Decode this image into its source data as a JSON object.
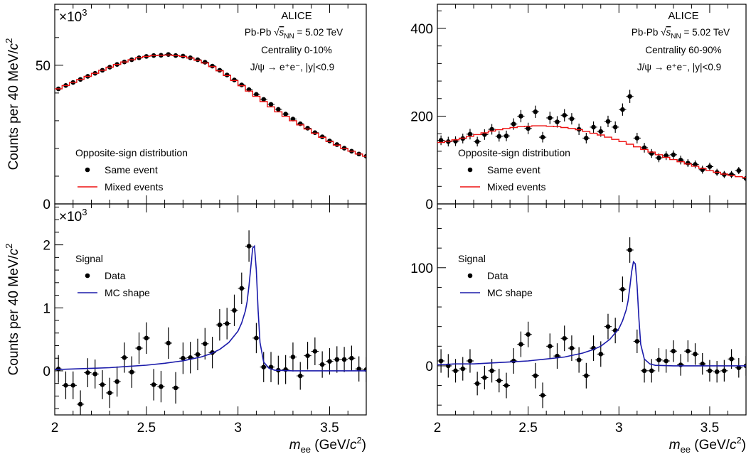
{
  "figure": {
    "experiment": "ALICE",
    "system": "Pb-Pb",
    "energy_symbol": "s",
    "energy_subscript": "NN",
    "energy_value": "= 5.02 TeV",
    "decay": "J/ψ → e⁺e⁻, |y|<0.9"
  },
  "chart_data": [
    {
      "type": "scatter",
      "panel": "top-left",
      "title": "",
      "annotations": [
        "ALICE",
        "Pb-Pb √sNN = 5.02 TeV",
        "Centrality 0-10%",
        "J/ψ → e⁺e⁻, |y|<0.9"
      ],
      "centrality": "Centrality 0-10%",
      "multiplier_base": "×10",
      "multiplier_exp": "3",
      "xlabel": "",
      "ylabel": "Counts per 40 MeV/c²",
      "ylabel_text": "Counts per 40 MeV/",
      "ylabel_c": "c",
      "ylabel_exp": "2",
      "xlim": [
        2,
        3.7
      ],
      "ylim": [
        0,
        72
      ],
      "yticks": [
        0,
        50
      ],
      "ytick_labels": [
        "0",
        "50"
      ],
      "xticks": [
        2,
        2.5,
        3,
        3.5
      ],
      "xtick_labels": [],
      "legend_title": "Opposite-sign distribution",
      "legend": [
        "Same event",
        "Mixed events"
      ],
      "legend_placement": "bottom-left",
      "series": [
        {
          "name": "Same event",
          "kind": "points",
          "color": "#000000",
          "x": [
            2.02,
            2.06,
            2.1,
            2.14,
            2.18,
            2.22,
            2.26,
            2.3,
            2.34,
            2.38,
            2.42,
            2.46,
            2.5,
            2.54,
            2.58,
            2.62,
            2.66,
            2.7,
            2.74,
            2.78,
            2.82,
            2.86,
            2.9,
            2.94,
            2.98,
            3.02,
            3.06,
            3.1,
            3.14,
            3.18,
            3.22,
            3.26,
            3.3,
            3.34,
            3.38,
            3.42,
            3.46,
            3.5,
            3.54,
            3.58,
            3.62,
            3.66,
            3.7
          ],
          "y": [
            41.5,
            42.7,
            43.8,
            44.9,
            46.0,
            47.1,
            48.2,
            49.3,
            50.3,
            51.2,
            52.0,
            52.7,
            53.2,
            53.5,
            53.6,
            53.9,
            53.5,
            53.3,
            52.7,
            52.0,
            51.1,
            49.7,
            48.2,
            46.5,
            44.7,
            42.9,
            41.2,
            39.5,
            37.7,
            35.9,
            34.1,
            32.4,
            30.6,
            28.9,
            27.3,
            25.7,
            24.2,
            22.7,
            21.4,
            20.1,
            19.0,
            18.0,
            17.2
          ],
          "yerr": [
            0.3,
            0.3,
            0.3,
            0.3,
            0.3,
            0.3,
            0.3,
            0.3,
            0.3,
            0.3,
            0.3,
            0.3,
            0.3,
            0.3,
            0.3,
            0.3,
            0.3,
            0.3,
            0.3,
            0.3,
            0.3,
            0.3,
            0.3,
            0.3,
            0.3,
            0.3,
            0.3,
            0.3,
            0.3,
            0.3,
            0.3,
            0.3,
            0.3,
            0.3,
            0.3,
            0.3,
            0.3,
            0.3,
            0.3,
            0.3,
            0.3,
            0.3,
            0.3
          ]
        },
        {
          "name": "Mixed events",
          "kind": "step",
          "color": "#ee1111",
          "x": [
            2.02,
            2.06,
            2.1,
            2.14,
            2.18,
            2.22,
            2.26,
            2.3,
            2.34,
            2.38,
            2.42,
            2.46,
            2.5,
            2.54,
            2.58,
            2.62,
            2.66,
            2.7,
            2.74,
            2.78,
            2.82,
            2.86,
            2.9,
            2.94,
            2.98,
            3.02,
            3.06,
            3.1,
            3.14,
            3.18,
            3.22,
            3.26,
            3.3,
            3.34,
            3.38,
            3.42,
            3.46,
            3.5,
            3.54,
            3.58,
            3.62,
            3.66,
            3.7
          ],
          "y": [
            41.5,
            42.7,
            43.8,
            44.9,
            46.0,
            47.1,
            48.2,
            49.3,
            50.3,
            51.2,
            52.0,
            52.7,
            53.2,
            53.5,
            53.6,
            53.7,
            53.5,
            53.2,
            52.6,
            51.8,
            50.8,
            49.5,
            48.0,
            46.3,
            44.5,
            42.6,
            40.7,
            38.8,
            36.9,
            35.0,
            33.2,
            31.6,
            30.0,
            28.5,
            27.0,
            25.5,
            24.0,
            22.5,
            21.2,
            20.0,
            19.0,
            18.0,
            17.2
          ]
        }
      ]
    },
    {
      "type": "scatter",
      "panel": "top-right",
      "title": "",
      "annotations": [
        "ALICE",
        "Pb-Pb √sNN = 5.02 TeV",
        "Centrality 60-90%",
        "J/ψ → e⁺e⁻, |y|<0.9"
      ],
      "centrality": "Centrality 60-90%",
      "xlabel": "",
      "ylabel": "",
      "xlim": [
        2,
        3.7
      ],
      "ylim": [
        0,
        455
      ],
      "yticks": [
        0,
        200,
        400
      ],
      "ytick_labels": [
        "0",
        "200",
        "400"
      ],
      "xticks": [
        2,
        2.5,
        3,
        3.5
      ],
      "xtick_labels": [],
      "legend_title": "Opposite-sign distribution",
      "legend": [
        "Same event",
        "Mixed events"
      ],
      "legend_placement": "bottom-left",
      "series": [
        {
          "name": "Same event",
          "kind": "points",
          "color": "#000000",
          "x": [
            2.02,
            2.06,
            2.1,
            2.14,
            2.18,
            2.22,
            2.26,
            2.3,
            2.34,
            2.38,
            2.42,
            2.46,
            2.5,
            2.54,
            2.58,
            2.62,
            2.66,
            2.7,
            2.74,
            2.78,
            2.82,
            2.86,
            2.9,
            2.94,
            2.98,
            3.02,
            3.06,
            3.1,
            3.14,
            3.18,
            3.22,
            3.26,
            3.3,
            3.34,
            3.38,
            3.42,
            3.46,
            3.5,
            3.54,
            3.58,
            3.62,
            3.66,
            3.7
          ],
          "y": [
            145,
            142,
            143,
            149,
            159,
            142,
            158,
            170,
            154,
            155,
            182,
            200,
            172,
            210,
            152,
            196,
            187,
            202,
            194,
            170,
            150,
            175,
            165,
            188,
            175,
            215,
            245,
            150,
            128,
            115,
            105,
            110,
            112,
            100,
            93,
            90,
            78,
            85,
            72,
            67,
            67,
            76,
            58
          ],
          "yerr": [
            11,
            11,
            11,
            11,
            12,
            11,
            12,
            12,
            12,
            12,
            13,
            14,
            13,
            14,
            12,
            14,
            13,
            14,
            13,
            13,
            12,
            13,
            12,
            13,
            13,
            14,
            15,
            12,
            11,
            10,
            10,
            10,
            10,
            10,
            9,
            9,
            9,
            9,
            8,
            8,
            8,
            8,
            7
          ]
        },
        {
          "name": "Mixed events",
          "kind": "step",
          "color": "#ee1111",
          "x": [
            2.02,
            2.06,
            2.1,
            2.14,
            2.18,
            2.22,
            2.26,
            2.3,
            2.34,
            2.38,
            2.42,
            2.46,
            2.5,
            2.54,
            2.58,
            2.62,
            2.66,
            2.7,
            2.74,
            2.78,
            2.82,
            2.86,
            2.9,
            2.94,
            2.98,
            3.02,
            3.06,
            3.1,
            3.14,
            3.18,
            3.22,
            3.26,
            3.3,
            3.34,
            3.38,
            3.42,
            3.46,
            3.5,
            3.54,
            3.58,
            3.62,
            3.66,
            3.7
          ],
          "y": [
            140,
            143,
            146,
            150,
            154,
            158,
            162,
            166,
            169,
            172,
            174,
            176,
            177,
            178,
            178,
            177,
            176,
            174,
            172,
            169,
            165,
            161,
            157,
            152,
            147,
            142,
            136,
            130,
            124,
            118,
            112,
            106,
            101,
            96,
            91,
            86,
            81,
            76,
            72,
            68,
            65,
            62,
            60
          ]
        }
      ]
    },
    {
      "type": "scatter",
      "panel": "bottom-left",
      "title": "",
      "multiplier_base": "×10",
      "multiplier_exp": "3",
      "xlabel": "m_ee (GeV/c²)",
      "xlabel_m": "m",
      "xlabel_sub": "ee",
      "xlabel_rest": " (GeV/",
      "xlabel_c": "c",
      "xlabel_exp": "2",
      "xlabel_close": ")",
      "ylabel": "Counts per 40 MeV/c²",
      "ylabel_text": "Counts per 40 MeV/",
      "ylabel_c": "c",
      "ylabel_exp": "2",
      "xlim": [
        2,
        3.7
      ],
      "ylim": [
        -0.7,
        2.65
      ],
      "yticks": [
        0,
        1,
        2
      ],
      "ytick_labels": [
        "0",
        "1",
        "2"
      ],
      "xticks": [
        2,
        2.5,
        3,
        3.5
      ],
      "xtick_labels": [
        "2",
        "2.5",
        "3",
        "3.5"
      ],
      "legend_title": "Signal",
      "legend": [
        "Data",
        "MC shape"
      ],
      "legend_placement": "top-left",
      "series": [
        {
          "name": "Data",
          "kind": "points",
          "color": "#000000",
          "x": [
            2.02,
            2.06,
            2.1,
            2.14,
            2.18,
            2.22,
            2.26,
            2.3,
            2.34,
            2.38,
            2.42,
            2.46,
            2.5,
            2.54,
            2.58,
            2.62,
            2.66,
            2.7,
            2.74,
            2.78,
            2.82,
            2.86,
            2.9,
            2.94,
            2.98,
            3.02,
            3.06,
            3.1,
            3.14,
            3.18,
            3.22,
            3.26,
            3.3,
            3.34,
            3.38,
            3.42,
            3.46,
            3.5,
            3.54,
            3.58,
            3.62,
            3.66,
            3.7
          ],
          "y": [
            0.03,
            -0.23,
            -0.23,
            -0.53,
            -0.03,
            -0.05,
            -0.22,
            -0.35,
            -0.17,
            0.21,
            -0.02,
            0.36,
            0.52,
            -0.22,
            -0.25,
            0.44,
            -0.27,
            0.2,
            0.21,
            0.26,
            0.43,
            0.29,
            0.73,
            0.75,
            0.96,
            1.31,
            1.98,
            0.52,
            0.06,
            0.06,
            0.01,
            0.02,
            0.22,
            -0.08,
            0.24,
            0.31,
            0.1,
            0.15,
            0.18,
            0.18,
            0.2,
            0.03,
            0.02
          ],
          "yerr": [
            0.22,
            0.22,
            0.22,
            0.22,
            0.23,
            0.23,
            0.23,
            0.24,
            0.24,
            0.24,
            0.25,
            0.25,
            0.25,
            0.25,
            0.25,
            0.25,
            0.25,
            0.25,
            0.25,
            0.25,
            0.25,
            0.25,
            0.25,
            0.25,
            0.25,
            0.25,
            0.25,
            0.24,
            0.24,
            0.24,
            0.23,
            0.23,
            0.23,
            0.22,
            0.22,
            0.22,
            0.21,
            0.21,
            0.21,
            0.2,
            0.2,
            0.2,
            0.2
          ]
        },
        {
          "name": "MC shape",
          "kind": "line",
          "color": "#1a1aaa",
          "x": [
            2.0,
            2.1,
            2.2,
            2.3,
            2.4,
            2.5,
            2.6,
            2.7,
            2.8,
            2.85,
            2.9,
            2.95,
            3.0,
            3.02,
            3.04,
            3.05,
            3.06,
            3.07,
            3.08,
            3.09,
            3.1,
            3.11,
            3.12,
            3.14,
            3.17,
            3.2,
            3.3,
            3.4,
            3.5,
            3.6,
            3.7
          ],
          "y": [
            0.02,
            0.03,
            0.04,
            0.05,
            0.07,
            0.09,
            0.12,
            0.16,
            0.22,
            0.27,
            0.34,
            0.45,
            0.63,
            0.76,
            0.95,
            1.1,
            1.35,
            1.65,
            1.95,
            1.98,
            1.6,
            0.95,
            0.45,
            0.14,
            0.04,
            0.01,
            0.0,
            0.0,
            0.0,
            0.0,
            0.0
          ]
        }
      ]
    },
    {
      "type": "scatter",
      "panel": "bottom-right",
      "title": "",
      "xlabel": "m_ee (GeV/c²)",
      "xlabel_m": "m",
      "xlabel_sub": "ee",
      "xlabel_rest": " (GeV/",
      "xlabel_c": "c",
      "xlabel_exp": "2",
      "xlabel_close": ")",
      "ylabel": "",
      "xlim": [
        2,
        3.7
      ],
      "ylim": [
        -50,
        165
      ],
      "yticks": [
        0,
        100
      ],
      "ytick_labels": [
        "0",
        "100"
      ],
      "xticks": [
        2,
        2.5,
        3,
        3.5
      ],
      "xtick_labels": [
        "2",
        "2.5",
        "3",
        "3.5"
      ],
      "legend_title": "Signal",
      "legend": [
        "Data",
        "MC shape"
      ],
      "legend_placement": "top-left",
      "series": [
        {
          "name": "Data",
          "kind": "points",
          "color": "#000000",
          "x": [
            2.02,
            2.06,
            2.1,
            2.14,
            2.18,
            2.22,
            2.26,
            2.3,
            2.34,
            2.38,
            2.42,
            2.46,
            2.5,
            2.54,
            2.58,
            2.62,
            2.66,
            2.7,
            2.74,
            2.78,
            2.82,
            2.86,
            2.9,
            2.94,
            2.98,
            3.02,
            3.06,
            3.1,
            3.14,
            3.18,
            3.22,
            3.26,
            3.3,
            3.34,
            3.38,
            3.42,
            3.46,
            3.5,
            3.54,
            3.58,
            3.62,
            3.66,
            3.7
          ],
          "y": [
            5,
            0,
            -5,
            -3,
            5,
            -18,
            -12,
            -5,
            -15,
            -20,
            5,
            22,
            32,
            -10,
            -30,
            20,
            10,
            28,
            18,
            6,
            -10,
            18,
            12,
            40,
            36,
            78,
            118,
            25,
            -5,
            -5,
            6,
            5,
            15,
            1,
            15,
            12,
            2,
            -5,
            -6,
            -5,
            7,
            -2,
            0
          ],
          "yerr": [
            12,
            12,
            12,
            12,
            12,
            12,
            12,
            12,
            12,
            13,
            13,
            13,
            13,
            13,
            13,
            13,
            13,
            13,
            13,
            13,
            13,
            13,
            13,
            13,
            13,
            13,
            13,
            12,
            12,
            12,
            12,
            12,
            11,
            11,
            11,
            11,
            11,
            11,
            11,
            11,
            10,
            10,
            10
          ]
        },
        {
          "name": "MC shape",
          "kind": "line",
          "color": "#1a1aaa",
          "x": [
            2.0,
            2.1,
            2.2,
            2.3,
            2.4,
            2.5,
            2.6,
            2.7,
            2.8,
            2.85,
            2.9,
            2.95,
            3.0,
            3.02,
            3.04,
            3.05,
            3.06,
            3.07,
            3.08,
            3.09,
            3.1,
            3.11,
            3.12,
            3.14,
            3.17,
            3.2,
            3.3,
            3.4,
            3.5,
            3.6,
            3.7
          ],
          "y": [
            1,
            2,
            2,
            3,
            4,
            5,
            7,
            9,
            13,
            16,
            20,
            27,
            38,
            46,
            57,
            66,
            80,
            96,
            106,
            104,
            82,
            48,
            22,
            7,
            2,
            0.5,
            0,
            0,
            0,
            0,
            0
          ]
        }
      ]
    }
  ]
}
